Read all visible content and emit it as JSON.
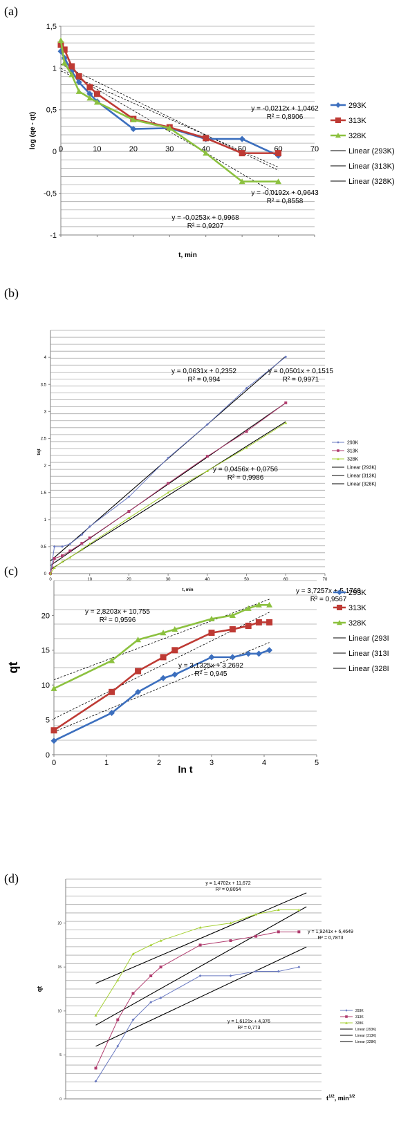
{
  "chart_data": [
    {
      "panel": "(a)",
      "type": "line",
      "xlabel": "t, min",
      "ylabel": "log (qe - qt)",
      "xlim": [
        0,
        70
      ],
      "ylim": [
        -1,
        1.5
      ],
      "xticks": [
        "0",
        "10",
        "20",
        "30",
        "40",
        "50",
        "60",
        "70"
      ],
      "yticks": [
        "-1",
        "-0,5",
        "0",
        "0,5",
        "1",
        "1,5"
      ],
      "legend_position": "right",
      "series": [
        {
          "name": "293K",
          "color": "#3c6fbe",
          "marker": "diamond",
          "x": [
            0,
            1,
            3,
            5,
            8,
            10,
            20,
            30,
            40,
            50,
            60
          ],
          "y": [
            1.2,
            1.12,
            0.96,
            0.83,
            0.69,
            0.6,
            0.27,
            0.28,
            0.15,
            0.15,
            -0.05
          ]
        },
        {
          "name": "313K",
          "color": "#be3a34",
          "marker": "square",
          "x": [
            0,
            1,
            3,
            5,
            8,
            10,
            20,
            30,
            40,
            50,
            60
          ],
          "y": [
            1.28,
            1.22,
            1.02,
            0.9,
            0.77,
            0.69,
            0.39,
            0.29,
            0.16,
            -0.02,
            -0.02
          ]
        },
        {
          "name": "328K",
          "color": "#8cc13f",
          "marker": "triangle",
          "x": [
            0,
            1,
            3,
            5,
            8,
            10,
            20,
            30,
            40,
            50,
            60
          ],
          "y": [
            1.33,
            1.06,
            0.92,
            0.72,
            0.64,
            0.59,
            0.38,
            0.28,
            -0.02,
            -0.36,
            -0.36
          ]
        }
      ],
      "trendlines": [
        {
          "name": "Linear (293K)",
          "slope": -0.0212,
          "intercept": 1.0462
        },
        {
          "name": "Linear (313K)",
          "slope": -0.0192,
          "intercept": 0.9643
        },
        {
          "name": "Linear (328K)",
          "slope": -0.0253,
          "intercept": 0.9968
        }
      ],
      "annotations": [
        {
          "eq": "y = -0,0212x + 1,0462",
          "r2": "R² = 0,8906"
        },
        {
          "eq": "y = -0,0192x + 0,9643",
          "r2": "R² = 0,8558"
        },
        {
          "eq": "y = -0,0253x + 0,9968",
          "r2": "R² = 0,9207"
        }
      ]
    },
    {
      "panel": "(b)",
      "type": "line",
      "xlabel": "t, min",
      "ylabel": "t/qt",
      "xlim": [
        0,
        70
      ],
      "ylim": [
        0,
        4.5
      ],
      "xticks": [
        "0",
        "10",
        "20",
        "30",
        "40",
        "50",
        "60",
        "70"
      ],
      "yticks": [
        "0",
        "0.5",
        "1",
        "1.5",
        "2",
        "2.5",
        "3",
        "3.5",
        "4"
      ],
      "legend_position": "right",
      "series": [
        {
          "name": "293K",
          "color": "#6b7bc2",
          "marker": "diamond",
          "x": [
            0,
            1,
            3,
            5,
            8,
            10,
            20,
            30,
            40,
            50,
            60
          ],
          "y": [
            0,
            0.5,
            0.5,
            0.55,
            0.72,
            0.87,
            1.42,
            2.14,
            2.76,
            3.43,
            4.01
          ]
        },
        {
          "name": "313K",
          "color": "#b13c6e",
          "marker": "square",
          "x": [
            0,
            1,
            3,
            5,
            8,
            10,
            20,
            30,
            40,
            50,
            60
          ],
          "y": [
            0,
            0.28,
            0.33,
            0.42,
            0.56,
            0.66,
            1.15,
            1.67,
            2.17,
            2.63,
            3.16
          ]
        },
        {
          "name": "328K",
          "color": "#a6d133",
          "marker": "triangle",
          "x": [
            0,
            1,
            3,
            5,
            8,
            10,
            20,
            30,
            40,
            50,
            60
          ],
          "y": [
            0,
            0.11,
            0.22,
            0.3,
            0.45,
            0.55,
            1.03,
            1.5,
            1.9,
            2.33,
            2.79
          ]
        }
      ],
      "trendlines": [
        {
          "name": "Linear (293K)",
          "slope": 0.0631,
          "intercept": 0.2352
        },
        {
          "name": "Linear (313K)",
          "slope": 0.0501,
          "intercept": 0.1515
        },
        {
          "name": "Linear (328K)",
          "slope": 0.0456,
          "intercept": 0.0756
        }
      ],
      "annotations": [
        {
          "eq": "y = 0,0631x + 0,2352",
          "r2": "R² = 0,994"
        },
        {
          "eq": "y = 0,0501x + 0,1515",
          "r2": "R² = 0,9971"
        },
        {
          "eq": "y = 0,0456x + 0,0756",
          "r2": "R² = 0,9986"
        }
      ]
    },
    {
      "panel": "(c)",
      "type": "line",
      "xlabel": "ln t",
      "ylabel": "qt",
      "xlim": [
        0,
        5
      ],
      "ylim": [
        0,
        25
      ],
      "xticks": [
        "0",
        "1",
        "2",
        "3",
        "4",
        "5"
      ],
      "yticks": [
        "0",
        "5",
        "10",
        "15",
        "20"
      ],
      "legend_position": "right",
      "series": [
        {
          "name": "293K",
          "color": "#3c6fbe",
          "marker": "diamond",
          "x": [
            0,
            1.1,
            1.6,
            2.08,
            2.3,
            3,
            3.4,
            3.7,
            3.9,
            4.1
          ],
          "y": [
            2,
            6,
            9,
            11,
            11.5,
            14,
            14,
            14.5,
            14.5,
            15
          ]
        },
        {
          "name": "313K",
          "color": "#be3a34",
          "marker": "square",
          "x": [
            0,
            1.1,
            1.6,
            2.08,
            2.3,
            3,
            3.4,
            3.7,
            3.9,
            4.1
          ],
          "y": [
            3.5,
            9,
            12,
            14,
            15,
            17.5,
            18,
            18.5,
            19,
            19
          ]
        },
        {
          "name": "328K",
          "color": "#8cc13f",
          "marker": "triangle",
          "x": [
            0,
            1.1,
            1.6,
            2.08,
            2.3,
            3,
            3.4,
            3.7,
            3.9,
            4.1
          ],
          "y": [
            9.5,
            13.5,
            16.5,
            17.5,
            18,
            19.5,
            20,
            21,
            21.5,
            21.5
          ]
        }
      ],
      "trendlines": [
        {
          "name": "Linear (293I",
          "slope": 3.1325,
          "intercept": 3.2692
        },
        {
          "name": "Linear (313I",
          "slope": 3.7257,
          "intercept": 5.1768
        },
        {
          "name": "Linear (328I",
          "slope": 2.8203,
          "intercept": 10.755
        }
      ],
      "annotations": [
        {
          "eq": "y = 2,8203x + 10,755",
          "r2": "R² = 0,9596"
        },
        {
          "eq": "y = 3,7257x + 5,1768",
          "r2": "R² = 0,9567"
        },
        {
          "eq": "y = 3,1325x + 3,2692",
          "r2": "R² = 0,945"
        }
      ]
    },
    {
      "panel": "(d)",
      "type": "line",
      "xlabel": "t",
      "xlabel_sup": "1/2",
      "xlabel_unit": ", min",
      "xlabel_unit_sup": "1/2",
      "ylabel": "qt",
      "xlim": [
        0,
        8.5
      ],
      "ylim": [
        0,
        25
      ],
      "yticks": [
        "0",
        "5",
        "10",
        "15",
        "20"
      ],
      "legend_position": "right",
      "series": [
        {
          "name": "293K",
          "color": "#6b7bc2",
          "marker": "diamond",
          "x": [
            1,
            1.73,
            2.24,
            2.83,
            3.16,
            4.47,
            5.48,
            6.32,
            7.07,
            7.75
          ],
          "y": [
            2,
            6,
            9,
            11,
            11.5,
            14,
            14,
            14.5,
            14.5,
            15
          ]
        },
        {
          "name": "313K",
          "color": "#b13c6e",
          "marker": "square",
          "x": [
            1,
            1.73,
            2.24,
            2.83,
            3.16,
            4.47,
            5.48,
            6.32,
            7.07,
            7.75
          ],
          "y": [
            3.5,
            9,
            12,
            14,
            15,
            17.5,
            18,
            18.5,
            19,
            19
          ]
        },
        {
          "name": "328K",
          "color": "#a6d133",
          "marker": "triangle",
          "x": [
            1,
            1.73,
            2.24,
            2.83,
            3.16,
            4.47,
            5.48,
            6.32,
            7.07,
            7.75
          ],
          "y": [
            9.5,
            13.5,
            16.5,
            17.5,
            18,
            19.5,
            20,
            21,
            21.5,
            21.5
          ]
        }
      ],
      "trendlines": [
        {
          "name": "Linear (293K)",
          "slope": 1.6121,
          "intercept": 4.376
        },
        {
          "name": "Linear (313K)",
          "slope": 1.9241,
          "intercept": 6.4649
        },
        {
          "name": "Linear (328K)",
          "slope": 1.4702,
          "intercept": 11.672
        }
      ],
      "annotations": [
        {
          "eq": "y = 1,4702x + 11,672",
          "r2": "R² = 0,8054"
        },
        {
          "eq": "y = 1,9241x + 6,4649",
          "r2": "R² = 0,7873"
        },
        {
          "eq": "y = 1,6121x + 4,376",
          "r2": "R² = 0,773"
        }
      ]
    }
  ]
}
